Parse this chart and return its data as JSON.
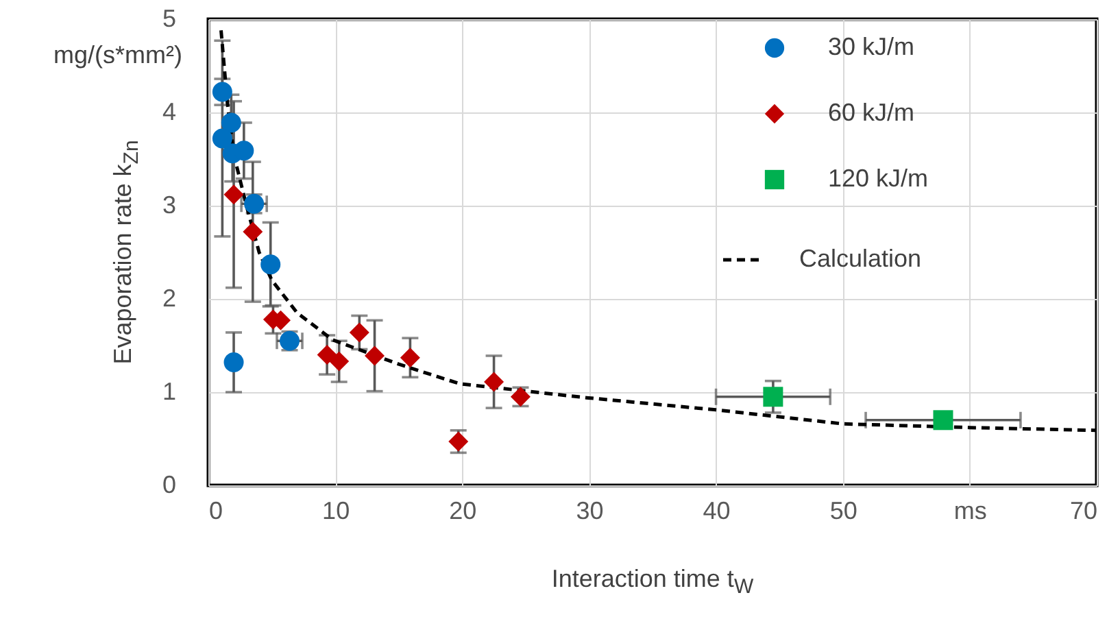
{
  "chart_data": {
    "type": "scatter",
    "xlabel": "Interaction time t$_{W}$",
    "ylabel": "Evaporation rate k$_{Zn}$",
    "annotations": [
      "mg/(s*mm²)"
    ],
    "xlim": [
      0,
      70
    ],
    "ylim": [
      0,
      5
    ],
    "xticks": [
      0,
      10,
      20,
      30,
      40,
      {
        "value": 60,
        "label": "ms"
      },
      50,
      70
    ],
    "yticks": [
      0,
      1,
      2,
      3,
      4,
      5
    ],
    "grid": true,
    "legend": "top right",
    "series": [
      {
        "name": "30 kJ/m",
        "color": "#0070c0",
        "marker": "circle",
        "x": [
          1.1,
          1.8,
          1.1,
          1.9,
          2.8,
          3.6,
          4.9,
          6.4,
          2.0
        ],
        "values": [
          4.22,
          3.89,
          3.72,
          3.56,
          3.59,
          3.02,
          2.37,
          1.55,
          1.32
        ],
        "errors": [
          0.14,
          0.3,
          1.05,
          0.3,
          0.3,
          0.1,
          0.45,
          0.1,
          0.32
        ],
        "xerrors": [
          null,
          null,
          null,
          null,
          null,
          1.0,
          null,
          1.0,
          null
        ]
      },
      {
        "name": "60 kJ/m",
        "color": "#c00000",
        "marker": "diamond",
        "x": [
          2.0,
          3.5,
          5.1,
          5.7,
          9.35,
          10.3,
          11.9,
          13.1,
          15.9,
          19.7,
          22.5,
          24.6
        ],
        "values": [
          3.12,
          2.72,
          1.78,
          1.77,
          1.4,
          1.33,
          1.64,
          1.39,
          1.37,
          0.47,
          1.11,
          0.95
        ],
        "errors": [
          1.0,
          0.75,
          0.15,
          null,
          0.21,
          0.22,
          0.18,
          0.38,
          0.21,
          0.12,
          0.28,
          0.1
        ]
      },
      {
        "name": "120 kJ/m",
        "color": "#00b050",
        "marker": "square",
        "x": [
          44.5,
          57.9
        ],
        "values": [
          0.95,
          0.7
        ],
        "errors": [
          0.17,
          null
        ],
        "xerrors": [
          4.5,
          6.1
        ]
      },
      {
        "name": "Calculation",
        "type": "line",
        "color": "#000000",
        "line_style": "dashed",
        "marker": "none",
        "x": [
          1,
          1.5,
          2,
          3,
          4,
          5,
          7,
          9.8,
          15,
          19.8,
          29.8,
          40,
          50,
          60,
          70
        ],
        "values": [
          4.88,
          4.1,
          3.55,
          3.0,
          2.5,
          2.2,
          1.85,
          1.56,
          1.3,
          1.09,
          0.94,
          0.81,
          0.66,
          0.62,
          0.59
        ]
      }
    ]
  }
}
